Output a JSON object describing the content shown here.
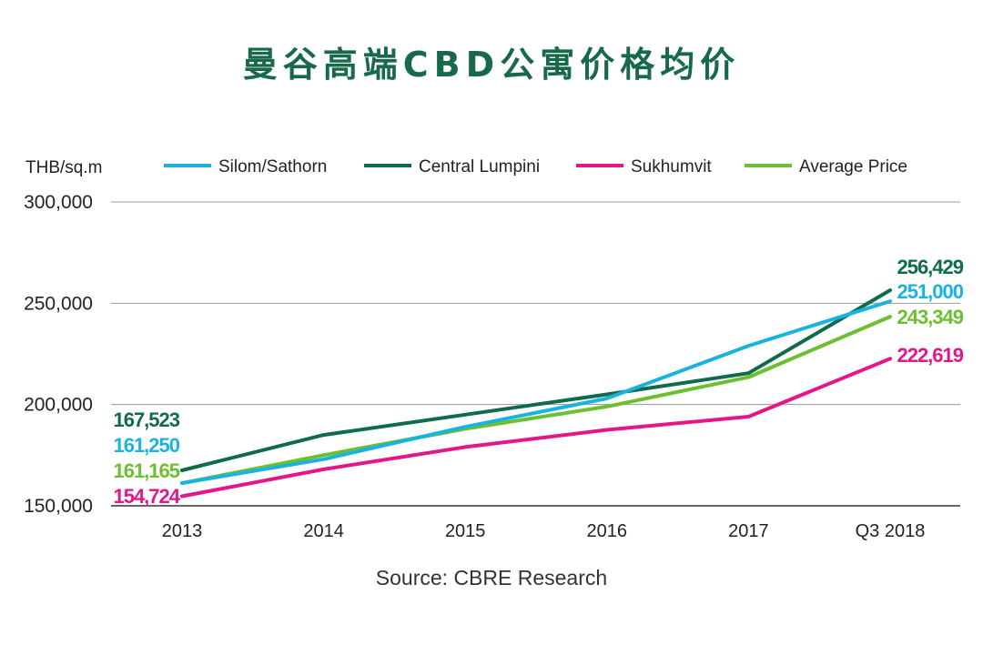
{
  "title": "曼谷高端CBD公寓价格均价",
  "source": "Source: CBRE Research",
  "chart_data": {
    "type": "line",
    "title": "曼谷高端CBD公寓价格均价",
    "ylabel": "THB/sq.m",
    "xlabel": "",
    "categories": [
      "2013",
      "2014",
      "2015",
      "2016",
      "2017",
      "Q3 2018"
    ],
    "ylim": [
      150000,
      300000
    ],
    "yticks": [
      150000,
      200000,
      250000,
      300000
    ],
    "ytick_labels": [
      "150,000",
      "200,000",
      "250,000",
      "300,000"
    ],
    "grid": true,
    "legend_position": "top",
    "series": [
      {
        "name": "Silom/Sathorn",
        "color": "#1ab3e0",
        "values": [
          161250,
          173000,
          189000,
          203000,
          229000,
          251000
        ],
        "start_label": "161,250",
        "end_label": "251,000"
      },
      {
        "name": "Central Lumpini",
        "color": "#0f6b4c",
        "values": [
          167523,
          185000,
          195000,
          205000,
          215500,
          256429
        ],
        "start_label": "167,523",
        "end_label": "256,429"
      },
      {
        "name": "Sukhumvit",
        "color": "#e3168a",
        "values": [
          154724,
          168000,
          179000,
          187500,
          194000,
          222619
        ],
        "start_label": "154,724",
        "end_label": "222,619"
      },
      {
        "name": "Average Price",
        "color": "#6cbf2f",
        "values": [
          161165,
          175000,
          188000,
          199000,
          213500,
          243349
        ],
        "start_label": "161,165",
        "end_label": "243,349"
      }
    ]
  }
}
